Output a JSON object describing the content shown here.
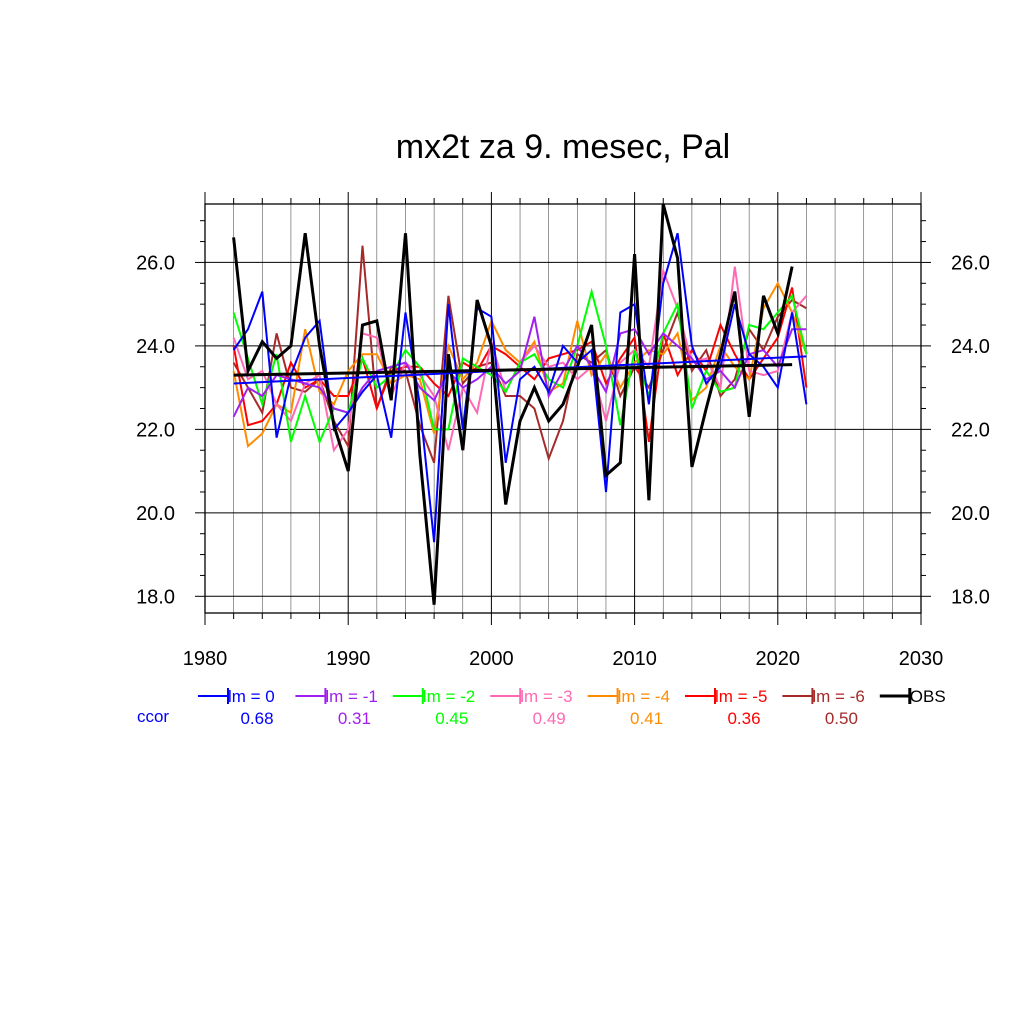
{
  "chart_data": {
    "type": "line",
    "title": "mx2t za 9. mesec, Pal",
    "xlabel": "",
    "ylabel": "",
    "xlim": [
      1980,
      2030
    ],
    "ylim": [
      17.6,
      27.4
    ],
    "xticks": [
      "1980",
      "1990",
      "2000",
      "2010",
      "2020",
      "2030"
    ],
    "yticks": [
      "18.0",
      "20.0",
      "22.0",
      "24.0",
      "26.0"
    ],
    "grid": true,
    "ccor_label": "ccor",
    "legend_position": "bottom",
    "series": [
      {
        "name": "lm = 0",
        "color": "#0000ff",
        "ccor": "0.68",
        "values": [
          23.9,
          24.4,
          25.3,
          21.8,
          23.3,
          24.2,
          24.6,
          22.0,
          22.4,
          22.9,
          23.3,
          21.8,
          24.8,
          22.6,
          19.3,
          25.0,
          22.0,
          24.9,
          24.7,
          21.2,
          23.2,
          23.5,
          22.9,
          24.0,
          23.6,
          23.9,
          20.5,
          24.8,
          25.0,
          22.6,
          25.5,
          26.7,
          24.0,
          23.1,
          23.5,
          25.0,
          23.8,
          23.5,
          23.0,
          24.8,
          22.6
        ],
        "trend": [
          23.1,
          23.75
        ]
      },
      {
        "name": "lm = -1",
        "color": "#a020f0",
        "ccor": "0.31",
        "values": [
          22.3,
          23.0,
          22.8,
          23.3,
          23.2,
          23.1,
          23.0,
          22.5,
          22.4,
          23.0,
          23.4,
          23.5,
          23.6,
          23.0,
          22.7,
          23.4,
          23.0,
          23.2,
          23.5,
          23.1,
          23.4,
          24.7,
          22.8,
          23.4,
          24.0,
          23.5,
          22.9,
          24.3,
          24.4,
          23.8,
          24.3,
          24.0,
          23.7,
          23.2,
          23.4,
          23.0,
          23.8,
          23.9,
          23.5,
          24.4,
          24.4
        ]
      },
      {
        "name": "lm = -2",
        "color": "#00ff00",
        "ccor": "0.45",
        "values": [
          24.8,
          23.7,
          22.6,
          23.8,
          21.7,
          22.8,
          21.7,
          22.5,
          22.4,
          23.7,
          23.0,
          23.3,
          23.9,
          23.5,
          22.0,
          22.0,
          23.7,
          23.5,
          23.3,
          22.9,
          23.6,
          23.8,
          23.2,
          23.0,
          24.0,
          25.3,
          24.0,
          22.1,
          23.9,
          22.8,
          24.3,
          25.0,
          22.5,
          23.4,
          22.9,
          23.0,
          24.5,
          24.4,
          24.8,
          25.2,
          23.8
        ]
      },
      {
        "name": "lm = -3",
        "color": "#ff69b4",
        "ccor": "0.49",
        "values": [
          24.2,
          23.2,
          23.4,
          22.6,
          22.2,
          23.1,
          23.3,
          21.5,
          22.0,
          24.3,
          24.2,
          22.8,
          23.6,
          23.3,
          22.8,
          21.5,
          23.0,
          22.4,
          24.1,
          22.9,
          23.6,
          24.0,
          23.5,
          23.6,
          23.2,
          23.5,
          22.2,
          23.6,
          23.9,
          23.5,
          25.8,
          24.9,
          23.6,
          23.7,
          23.0,
          25.9,
          23.4,
          23.3,
          23.4,
          24.8,
          25.2
        ]
      },
      {
        "name": "lm = -4",
        "color": "#ff8c00",
        "ccor": "0.41",
        "values": [
          23.4,
          21.6,
          21.9,
          22.6,
          22.4,
          24.4,
          22.9,
          22.6,
          23.4,
          23.8,
          23.8,
          23.1,
          23.3,
          23.2,
          21.9,
          24.0,
          23.2,
          23.6,
          24.6,
          23.9,
          23.6,
          24.1,
          22.9,
          23.1,
          24.6,
          23.3,
          23.8,
          23.0,
          23.6,
          23.9,
          23.8,
          24.3,
          22.7,
          23.0,
          24.0,
          23.5,
          23.2,
          24.9,
          25.5,
          24.8,
          23.8
        ]
      },
      {
        "name": "lm = -5",
        "color": "#ff0000",
        "ccor": "0.36",
        "values": [
          24.0,
          22.1,
          22.2,
          22.6,
          23.6,
          23.0,
          23.2,
          22.8,
          22.8,
          23.7,
          22.5,
          23.4,
          23.5,
          23.5,
          23.1,
          22.8,
          23.6,
          23.4,
          24.0,
          23.8,
          23.5,
          23.2,
          23.7,
          23.8,
          23.9,
          24.1,
          23.1,
          23.7,
          24.2,
          21.7,
          24.3,
          23.3,
          23.9,
          23.4,
          24.5,
          23.8,
          23.2,
          23.7,
          24.2,
          25.4,
          23.0
        ]
      },
      {
        "name": "lm = -6",
        "color": "#a52a2a",
        "ccor": "0.50",
        "values": [
          23.6,
          23.0,
          22.4,
          24.3,
          23.0,
          22.9,
          23.2,
          22.2,
          21.6,
          26.4,
          22.5,
          23.5,
          23.4,
          22.1,
          21.2,
          25.2,
          23.1,
          23.5,
          23.6,
          22.8,
          22.8,
          22.5,
          21.3,
          22.2,
          23.8,
          23.6,
          23.9,
          22.8,
          23.5,
          23.0,
          23.9,
          24.8,
          23.4,
          23.9,
          22.8,
          23.2,
          24.4,
          23.9,
          24.7,
          25.1,
          24.9
        ]
      },
      {
        "name": "OBS",
        "color": "#000000",
        "ccor": "",
        "values": [
          26.6,
          23.4,
          24.1,
          23.7,
          24.0,
          26.7,
          24.0,
          22.1,
          21.0,
          24.5,
          24.6,
          22.7,
          26.7,
          21.4,
          17.8,
          23.8,
          21.5,
          25.1,
          24.0,
          20.2,
          22.2,
          23.0,
          22.2,
          22.6,
          23.5,
          24.5,
          20.9,
          21.2,
          26.2,
          20.3,
          27.4,
          26.1,
          21.1,
          22.5,
          23.8,
          25.3,
          22.3,
          25.2,
          24.3,
          25.9
        ],
        "trend": [
          23.3,
          23.55
        ]
      }
    ]
  }
}
